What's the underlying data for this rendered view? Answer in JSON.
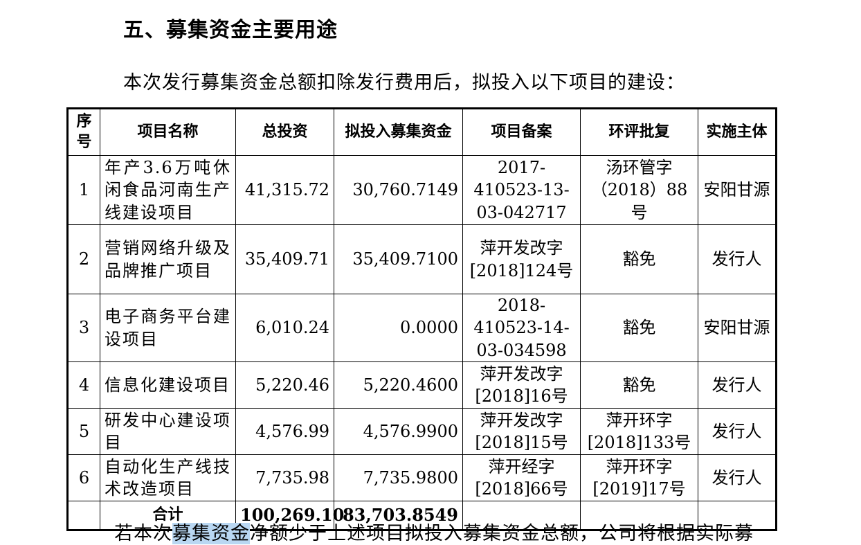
{
  "heading": "五、募集资金主要用途",
  "intro": "本次发行募集资金总额扣除发行费用后，拟投入以下项目的建设：",
  "table": {
    "headers": [
      "序号",
      "项目名称",
      "总投资",
      "拟投入募集资金",
      "项目备案",
      "环评批复",
      "实施主体"
    ],
    "rows": [
      {
        "no": "1",
        "name": "年产3.6万吨休闲食品河南生产线建设项目",
        "total": "41,315.72",
        "planned": "30,760.7149",
        "filing": "2017-410523-13-03-042717",
        "eia": "汤环管字（2018）88号",
        "entity": "安阳甘源"
      },
      {
        "no": "2",
        "name": "营销网络升级及品牌推广项目",
        "total": "35,409.71",
        "planned": "35,409.7100",
        "filing": "萍开发改字[2018]124号",
        "eia": "豁免",
        "entity": "发行人"
      },
      {
        "no": "3",
        "name": "电子商务平台建设项目",
        "total": "6,010.24",
        "planned": "0.0000",
        "filing": "2018-410523-14-03-034598",
        "eia": "豁免",
        "entity": "安阳甘源"
      },
      {
        "no": "4",
        "name": "信息化建设项目",
        "total": "5,220.46",
        "planned": "5,220.4600",
        "filing": "萍开发改字[2018]16号",
        "eia": "豁免",
        "entity": "发行人"
      },
      {
        "no": "5",
        "name": "研发中心建设项目",
        "total": "4,576.99",
        "planned": "4,576.9900",
        "filing": "萍开发改字[2018]15号",
        "eia": "萍开环字[2018]133号",
        "entity": "发行人"
      },
      {
        "no": "6",
        "name": "自动化生产线技术改造项目",
        "total": "7,735.98",
        "planned": "7,735.9800",
        "filing": "萍开经字[2018]66号",
        "eia": "萍开环字[2019]17号",
        "entity": "发行人"
      }
    ],
    "total_row": {
      "label": "合计",
      "total": "100,269.10",
      "planned": "83,703.8549"
    }
  },
  "footer": {
    "before": "若本次",
    "highlight": "募集资金",
    "after": "净额少于上述项目拟投入募集资金总额，公司将根据实际募"
  }
}
